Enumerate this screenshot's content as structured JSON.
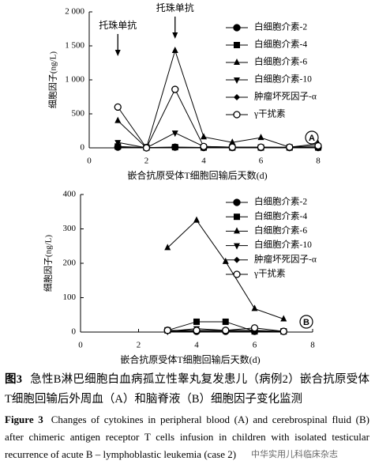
{
  "chart_data": [
    {
      "type": "line",
      "panel": "A",
      "x_label": "嵌合抗原受体T细胞回输后天数(d)",
      "y_label": "细胞因子(ng/L)",
      "x": [
        1,
        2,
        3,
        4,
        5,
        6,
        7,
        8
      ],
      "xlim": [
        0,
        8
      ],
      "xticks": [
        0,
        2,
        4,
        6,
        8
      ],
      "ylim": [
        0,
        2000
      ],
      "yticks": [
        0,
        500,
        {
          "value": 1000,
          "label": "1 000"
        },
        {
          "value": 1500,
          "label": "1 500"
        },
        {
          "value": 2000,
          "label": "2 000"
        }
      ],
      "legend": "upper right",
      "annotations": [
        {
          "text": "托珠单抗",
          "x": 1
        },
        {
          "text": "托珠单抗",
          "x": 3
        }
      ],
      "series": [
        {
          "name": "白细胞介素-2",
          "color": "#000000",
          "marker": "circle",
          "values": [
            10,
            5,
            10,
            5,
            5,
            5,
            5,
            5
          ]
        },
        {
          "name": "白细胞介素-4",
          "color": "#000000",
          "marker": "square",
          "values": [
            20,
            5,
            10,
            5,
            5,
            5,
            5,
            5
          ]
        },
        {
          "name": "白细胞介素-6",
          "color": "#000000",
          "marker": "triangle",
          "values": [
            400,
            0,
            1430,
            160,
            80,
            150,
            10,
            60
          ]
        },
        {
          "name": "白细胞介素-10",
          "color": "#000000",
          "marker": "triangle-down",
          "values": [
            80,
            0,
            220,
            20,
            10,
            10,
            5,
            10
          ]
        },
        {
          "name": "肿瘤坏死因子-α",
          "color": "#000000",
          "marker": "diamond",
          "values": [
            5,
            5,
            5,
            5,
            5,
            5,
            5,
            5
          ]
        },
        {
          "name": "γ干扰素",
          "color": "#000000",
          "marker": "circle-open",
          "values": [
            600,
            0,
            860,
            20,
            10,
            10,
            10,
            30
          ]
        }
      ]
    },
    {
      "type": "line",
      "panel": "B",
      "x_label": "嵌合抗原受体T细胞回输后天数(d)",
      "y_label": "细胞因子(ng/L)",
      "x": [
        3,
        4,
        5,
        6,
        7
      ],
      "xlim": [
        0,
        8
      ],
      "xticks": [
        0,
        2,
        4,
        6,
        8
      ],
      "ylim": [
        0,
        400
      ],
      "yticks": [
        0,
        100,
        200,
        300,
        400
      ],
      "legend": "upper right",
      "series": [
        {
          "name": "白细胞介素-2",
          "color": "#000000",
          "marker": "circle",
          "values": [
            5,
            2,
            2,
            2,
            2
          ]
        },
        {
          "name": "白细胞介素-4",
          "color": "#000000",
          "marker": "square",
          "values": [
            5,
            30,
            30,
            2,
            2
          ]
        },
        {
          "name": "白细胞介素-6",
          "color": "#000000",
          "marker": "triangle",
          "values": [
            245,
            325,
            205,
            68,
            38
          ]
        },
        {
          "name": "白细胞介素-10",
          "color": "#000000",
          "marker": "triangle-down",
          "values": [
            2,
            10,
            5,
            5,
            2
          ]
        },
        {
          "name": "肿瘤坏死因子-α",
          "color": "#000000",
          "marker": "diamond",
          "values": [
            2,
            2,
            2,
            2,
            2
          ]
        },
        {
          "name": "γ干扰素",
          "color": "#000000",
          "marker": "circle-open",
          "values": [
            5,
            5,
            5,
            12,
            2
          ]
        }
      ]
    }
  ],
  "caption_cn": {
    "label": "图3",
    "text": "急性B淋巴细胞白血病孤立性睾丸复发患儿（病例2）嵌合抗原受体T细胞回输后外周血（A）和脑脊液（B）细胞因子变化监测"
  },
  "caption_en": {
    "label": "Figure 3",
    "text": "Changes of cytokines in peripheral blood (A) and cerebrospinal fluid (B) after chimeric antigen receptor T cells infusion in children with isolated testicular recurrence of acute B – lymphoblastic leukemia (case 2)"
  },
  "watermark": "中华实用儿科临床杂志"
}
